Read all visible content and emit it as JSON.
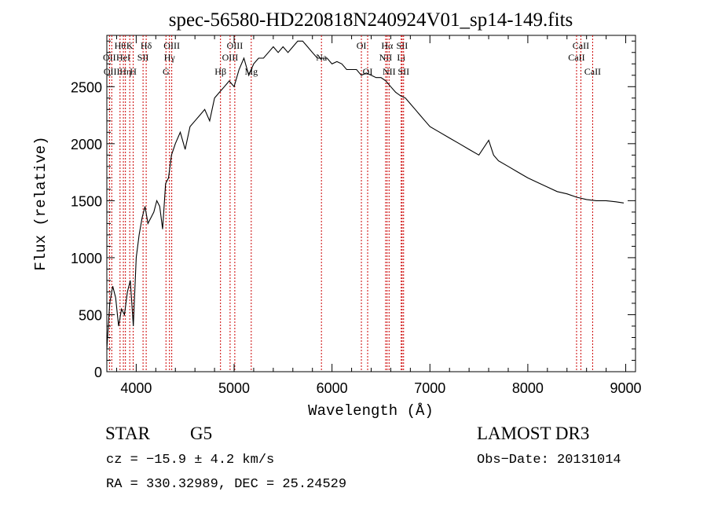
{
  "chart_data": {
    "type": "line",
    "title": "spec-56580-HD220818N240924V01_sp14-149.fits",
    "xlabel": "Wavelength (Å)",
    "ylabel": "Flux (relative)",
    "xlim": [
      3700,
      9100
    ],
    "ylim": [
      0,
      2950
    ],
    "x_ticks": [
      4000,
      5000,
      6000,
      7000,
      8000,
      9000
    ],
    "y_ticks": [
      0,
      500,
      1000,
      1500,
      2000,
      2500
    ],
    "grid": false,
    "line_color": "#000000",
    "marker_color": "#cc0000",
    "series": [
      {
        "x": [
          3700,
          3730,
          3760,
          3790,
          3820,
          3850,
          3880,
          3910,
          3940,
          3970,
          4000,
          4030,
          4060,
          4090,
          4120,
          4150,
          4180,
          4210,
          4240,
          4270,
          4300,
          4330,
          4360,
          4400,
          4450,
          4500,
          4550,
          4600,
          4650,
          4700,
          4750,
          4800,
          4850,
          4900,
          4950,
          5000,
          5050,
          5100,
          5150,
          5200,
          5250,
          5300,
          5350,
          5400,
          5450,
          5500,
          5550,
          5600,
          5650,
          5700,
          5750,
          5800,
          5850,
          5900,
          5950,
          6000,
          6050,
          6100,
          6150,
          6200,
          6250,
          6300,
          6350,
          6400,
          6450,
          6500,
          6550,
          6600,
          6650,
          6700,
          6750,
          6800,
          6850,
          6900,
          6950,
          7000,
          7100,
          7200,
          7300,
          7400,
          7500,
          7600,
          7650,
          7700,
          7800,
          7900,
          8000,
          8100,
          8200,
          8300,
          8400,
          8500,
          8600,
          8700,
          8800,
          8900,
          8980
        ],
        "y": [
          200,
          600,
          750,
          650,
          400,
          550,
          500,
          700,
          800,
          400,
          1000,
          1200,
          1350,
          1450,
          1300,
          1350,
          1400,
          1500,
          1450,
          1250,
          1650,
          1700,
          1900,
          2000,
          2100,
          1950,
          2150,
          2200,
          2250,
          2300,
          2200,
          2400,
          2450,
          2500,
          2550,
          2500,
          2650,
          2750,
          2600,
          2700,
          2750,
          2750,
          2800,
          2850,
          2800,
          2850,
          2800,
          2850,
          2900,
          2900,
          2850,
          2800,
          2750,
          2750,
          2750,
          2700,
          2720,
          2700,
          2650,
          2650,
          2650,
          2600,
          2620,
          2600,
          2580,
          2580,
          2550,
          2500,
          2450,
          2420,
          2400,
          2350,
          2300,
          2250,
          2200,
          2150,
          2100,
          2050,
          2000,
          1950,
          1900,
          2030,
          1900,
          1850,
          1800,
          1750,
          1700,
          1660,
          1620,
          1580,
          1560,
          1530,
          1510,
          1500,
          1500,
          1490,
          1480
        ]
      }
    ],
    "line_markers": [
      {
        "wavelength": 3727,
        "label": "OII",
        "row": 2
      },
      {
        "wavelength": 3750,
        "label": "OIII",
        "row": 3
      },
      {
        "wavelength": 3835,
        "label": "Hθ",
        "row": 1
      },
      {
        "wavelength": 3869,
        "label": "HeI",
        "row": 2
      },
      {
        "wavelength": 3890,
        "label": "Hη",
        "row": 3
      },
      {
        "wavelength": 3934,
        "label": "K",
        "row": 1
      },
      {
        "wavelength": 3969,
        "label": "H",
        "row": 3
      },
      {
        "wavelength": 4070,
        "label": "SII",
        "row": 2
      },
      {
        "wavelength": 4102,
        "label": "Hδ",
        "row": 1
      },
      {
        "wavelength": 4304,
        "label": "G",
        "row": 3
      },
      {
        "wavelength": 4340,
        "label": "Hγ",
        "row": 2
      },
      {
        "wavelength": 4363,
        "label": "OIII",
        "row": 1
      },
      {
        "wavelength": 4861,
        "label": "Hβ",
        "row": 3
      },
      {
        "wavelength": 4959,
        "label": "OIII",
        "row": 2
      },
      {
        "wavelength": 5007,
        "label": "OIII",
        "row": 1
      },
      {
        "wavelength": 5175,
        "label": "Mg",
        "row": 3
      },
      {
        "wavelength": 5892,
        "label": "Na",
        "row": 2
      },
      {
        "wavelength": 6300,
        "label": "OI",
        "row": 1
      },
      {
        "wavelength": 6364,
        "label": "OI",
        "row": 3
      },
      {
        "wavelength": 6548,
        "label": "NII",
        "row": 2
      },
      {
        "wavelength": 6563,
        "label": "Hα",
        "row": 1
      },
      {
        "wavelength": 6583,
        "label": "NII",
        "row": 3
      },
      {
        "wavelength": 6707,
        "label": "Li",
        "row": 2
      },
      {
        "wavelength": 6716,
        "label": "SII",
        "row": 1
      },
      {
        "wavelength": 6731,
        "label": "SII",
        "row": 3
      },
      {
        "wavelength": 8498,
        "label": "CaII",
        "row": 2
      },
      {
        "wavelength": 8542,
        "label": "CaII",
        "row": 1
      },
      {
        "wavelength": 8662,
        "label": "CaII",
        "row": 3
      }
    ]
  },
  "info": {
    "class_label": "STAR",
    "subclass": "G5",
    "survey": "LAMOST DR3",
    "cz_line": "cz = −15.9 ± 4.2 km/s",
    "obs_date_line": "Obs−Date: 20131014",
    "radec_line": "RA = 330.32989, DEC =  25.24529"
  }
}
